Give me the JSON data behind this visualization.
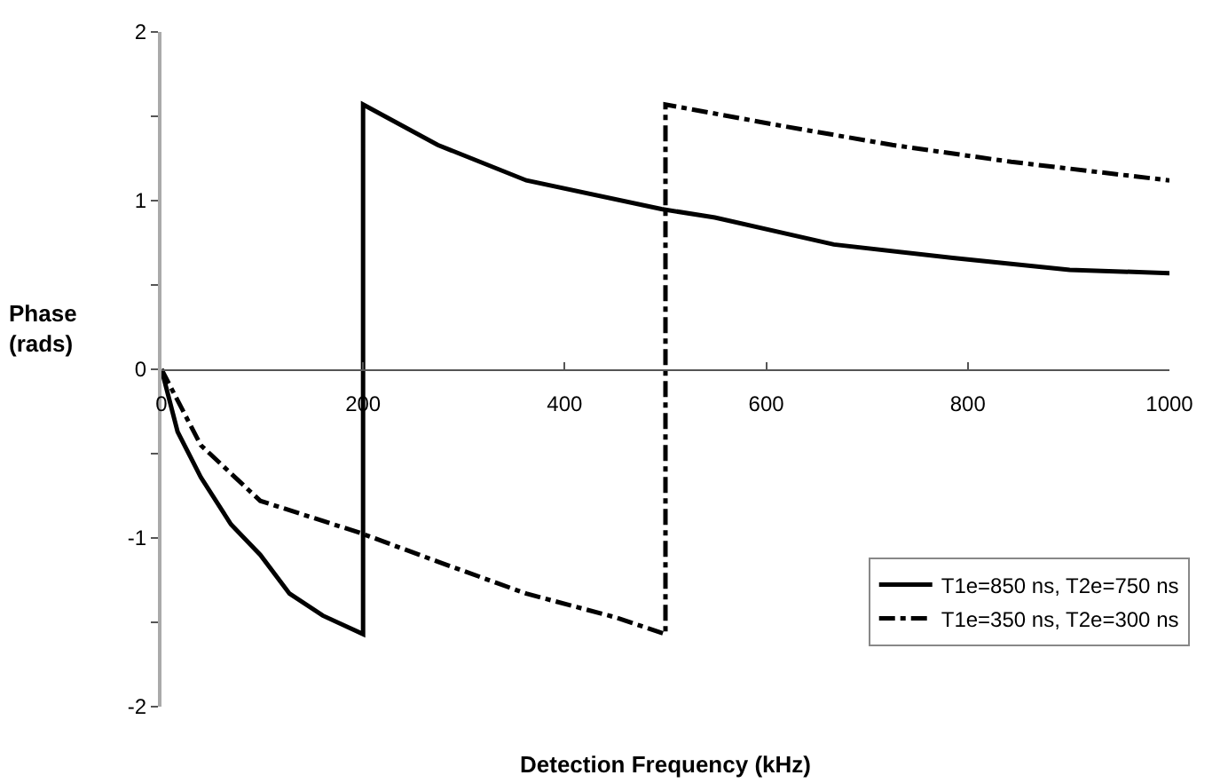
{
  "chart_data": {
    "type": "line",
    "xlabel": "Detection Frequency (kHz)",
    "ylabel": "Phase\n(rads)",
    "xlim": [
      0,
      1000
    ],
    "xticks": [
      0,
      200,
      400,
      600,
      800,
      1000
    ],
    "ylim": [
      -2,
      2
    ],
    "yticks": [
      -2,
      {
        "value": -1.5,
        "label": null
      },
      -1,
      {
        "value": -0.5,
        "label": null
      },
      0,
      {
        "value": 0.5,
        "label": null
      },
      1,
      {
        "value": 1.5,
        "label": null
      },
      2
    ],
    "legend": "bottom right",
    "marker": "none",
    "series": [
      {
        "name": "T1e=850 ns, T2e=750 ns",
        "color": "#000000",
        "line_style": "solid",
        "x": [
          0,
          16,
          39,
          69,
          98,
          127,
          160,
          200,
          200,
          274,
          362,
          496,
          549,
          667,
          785,
          901,
          1000
        ],
        "values": [
          0,
          -0.37,
          -0.64,
          -0.92,
          -1.1,
          -1.33,
          -1.46,
          -1.57,
          1.57,
          1.33,
          1.12,
          0.95,
          0.9,
          0.74,
          0.66,
          0.59,
          0.57
        ]
      },
      {
        "name": "T1e=350 ns, T2e=300 ns",
        "color": "#000000",
        "line_style": "dashdot",
        "x": [
          0,
          39,
          98,
          197,
          274,
          362,
          450,
          500,
          500,
          609,
          725,
          843,
          1000
        ],
        "values": [
          0,
          -0.45,
          -0.78,
          -0.97,
          -1.14,
          -1.33,
          -1.47,
          -1.57,
          1.57,
          1.45,
          1.33,
          1.23,
          1.12
        ]
      }
    ]
  }
}
